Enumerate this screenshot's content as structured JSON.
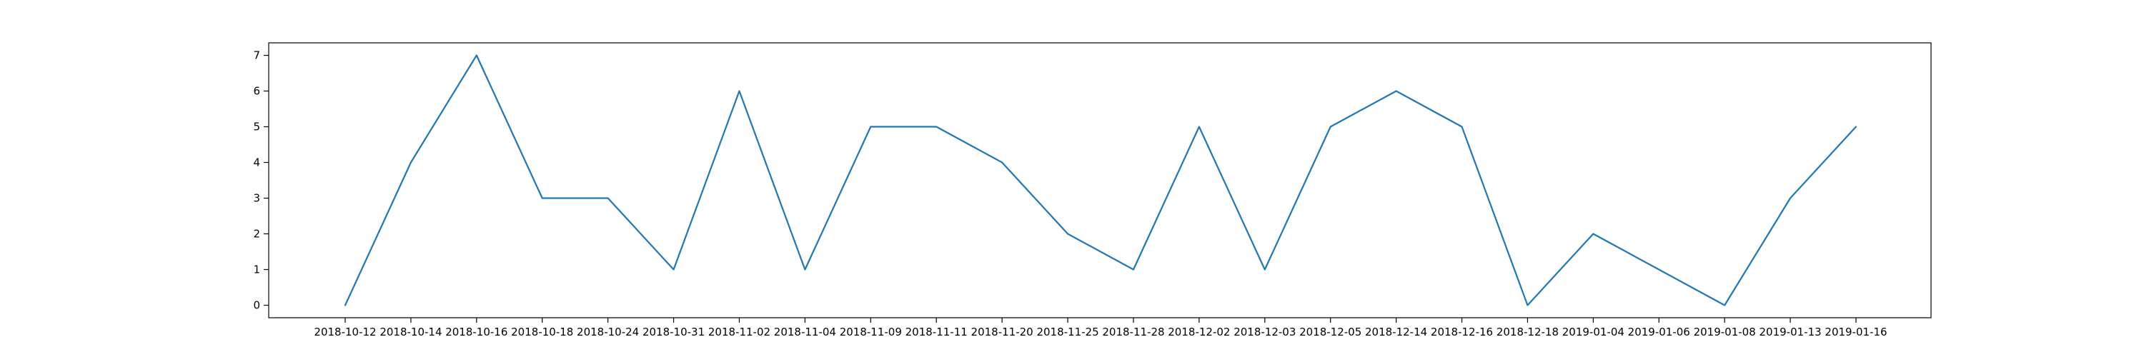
{
  "chart_data": {
    "type": "line",
    "title": "",
    "xlabel": "",
    "ylabel": "",
    "categories": [
      "2018-10-12",
      "2018-10-14",
      "2018-10-16",
      "2018-10-18",
      "2018-10-24",
      "2018-10-31",
      "2018-11-02",
      "2018-11-04",
      "2018-11-09",
      "2018-11-11",
      "2018-11-20",
      "2018-11-25",
      "2018-11-28",
      "2018-12-02",
      "2018-12-03",
      "2018-12-05",
      "2018-12-14",
      "2018-12-16",
      "2018-12-18",
      "2019-01-04",
      "2019-01-06",
      "2019-01-08",
      "2019-01-13",
      "2019-01-16"
    ],
    "series": [
      {
        "values": [
          0,
          4,
          7,
          3,
          3,
          1,
          6,
          1,
          5,
          5,
          4,
          2,
          1,
          5,
          1,
          5,
          6,
          5,
          0,
          2,
          1,
          0,
          3,
          5
        ]
      }
    ],
    "ylim": [
      -0.35,
      7.35
    ],
    "yticks": [
      0,
      1,
      2,
      3,
      4,
      5,
      6,
      7
    ],
    "grid": false,
    "legend": "none",
    "colors": {
      "line": "#1f77b4",
      "axis": "#000000"
    }
  }
}
